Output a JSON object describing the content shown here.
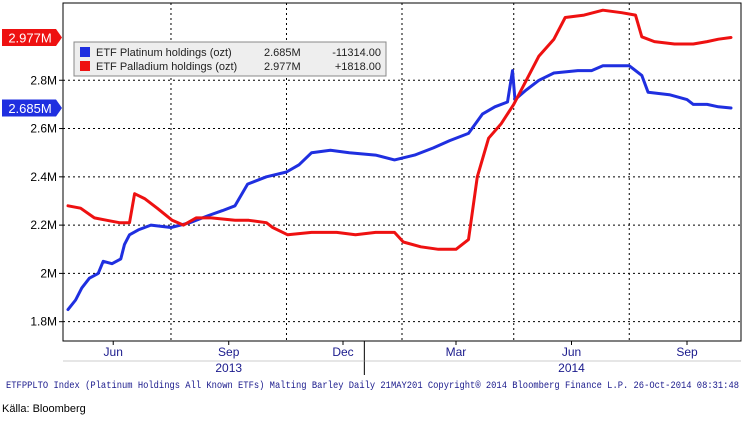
{
  "chart_data": {
    "type": "line",
    "y_unit_suffix": "M",
    "ylim": [
      1.72,
      3.12
    ],
    "y_ticks": [
      "1.8M",
      "2M",
      "2.2M",
      "2.4M",
      "2.6M",
      "2.8M"
    ],
    "x_ticks": [
      "Jun",
      "Sep",
      "Dec",
      "Mar",
      "Jun",
      "Sep"
    ],
    "year_labels": [
      "2013",
      "2014"
    ],
    "grid": true,
    "legend_position": "top-left",
    "footer": "ETFPPLTO Index (Platinum Holdings All Known ETFs) Malting Barley  Daily 21MAY201 Copyright® 2014 Bloomberg Finance L.P.  26-Oct-2014 08:31:48",
    "series": [
      {
        "name": "ETF Platinum holdings (ozt)",
        "color": "#1f2fe0",
        "legend_value": "2.685M",
        "legend_change": "-11314.00",
        "last_label": "2.685M",
        "values": [
          [
            "2013-05-10",
            1.85
          ],
          [
            "2013-05-16",
            1.89
          ],
          [
            "2013-05-21",
            1.94
          ],
          [
            "2013-05-27",
            1.98
          ],
          [
            "2013-06-03",
            2.0
          ],
          [
            "2013-06-07",
            2.05
          ],
          [
            "2013-06-14",
            2.04
          ],
          [
            "2013-06-21",
            2.06
          ],
          [
            "2013-06-24",
            2.12
          ],
          [
            "2013-06-28",
            2.16
          ],
          [
            "2013-07-05",
            2.18
          ],
          [
            "2013-07-15",
            2.2
          ],
          [
            "2013-07-31",
            2.19
          ],
          [
            "2013-08-15",
            2.21
          ],
          [
            "2013-08-30",
            2.24
          ],
          [
            "2013-09-10",
            2.26
          ],
          [
            "2013-09-20",
            2.28
          ],
          [
            "2013-09-30",
            2.37
          ],
          [
            "2013-10-15",
            2.4
          ],
          [
            "2013-10-31",
            2.42
          ],
          [
            "2013-11-10",
            2.45
          ],
          [
            "2013-11-20",
            2.5
          ],
          [
            "2013-12-05",
            2.51
          ],
          [
            "2013-12-20",
            2.5
          ],
          [
            "2014-01-10",
            2.49
          ],
          [
            "2014-01-25",
            2.47
          ],
          [
            "2014-02-10",
            2.49
          ],
          [
            "2014-02-25",
            2.52
          ],
          [
            "2014-03-10",
            2.55
          ],
          [
            "2014-03-25",
            2.58
          ],
          [
            "2014-04-05",
            2.66
          ],
          [
            "2014-04-15",
            2.69
          ],
          [
            "2014-04-25",
            2.71
          ],
          [
            "2014-04-29",
            2.84
          ],
          [
            "2014-05-01",
            2.72
          ],
          [
            "2014-05-10",
            2.76
          ],
          [
            "2014-05-20",
            2.8
          ],
          [
            "2014-06-01",
            2.83
          ],
          [
            "2014-06-20",
            2.84
          ],
          [
            "2014-07-01",
            2.84
          ],
          [
            "2014-07-10",
            2.86
          ],
          [
            "2014-07-31",
            2.86
          ],
          [
            "2014-08-10",
            2.82
          ],
          [
            "2014-08-15",
            2.75
          ],
          [
            "2014-09-01",
            2.74
          ],
          [
            "2014-09-15",
            2.72
          ],
          [
            "2014-09-20",
            2.7
          ],
          [
            "2014-10-01",
            2.7
          ],
          [
            "2014-10-10",
            2.69
          ],
          [
            "2014-10-20",
            2.685
          ]
        ]
      },
      {
        "name": "ETF Palladium holdings (ozt)",
        "color": "#ee1111",
        "legend_value": "2.977M",
        "legend_change": "+1818.00",
        "last_label": "2.977M",
        "values": [
          [
            "2013-05-10",
            2.28
          ],
          [
            "2013-05-20",
            2.27
          ],
          [
            "2013-05-31",
            2.23
          ],
          [
            "2013-06-10",
            2.22
          ],
          [
            "2013-06-20",
            2.21
          ],
          [
            "2013-06-28",
            2.21
          ],
          [
            "2013-07-02",
            2.33
          ],
          [
            "2013-07-10",
            2.31
          ],
          [
            "2013-07-20",
            2.27
          ],
          [
            "2013-08-01",
            2.22
          ],
          [
            "2013-08-10",
            2.2
          ],
          [
            "2013-08-20",
            2.23
          ],
          [
            "2013-09-01",
            2.23
          ],
          [
            "2013-09-20",
            2.22
          ],
          [
            "2013-10-01",
            2.22
          ],
          [
            "2013-10-15",
            2.21
          ],
          [
            "2013-10-20",
            2.19
          ],
          [
            "2013-11-01",
            2.16
          ],
          [
            "2013-11-20",
            2.17
          ],
          [
            "2013-12-10",
            2.17
          ],
          [
            "2013-12-25",
            2.16
          ],
          [
            "2014-01-10",
            2.17
          ],
          [
            "2014-01-25",
            2.17
          ],
          [
            "2014-02-01",
            2.13
          ],
          [
            "2014-02-15",
            2.11
          ],
          [
            "2014-03-01",
            2.1
          ],
          [
            "2014-03-15",
            2.1
          ],
          [
            "2014-03-25",
            2.14
          ],
          [
            "2014-04-01",
            2.4
          ],
          [
            "2014-04-10",
            2.56
          ],
          [
            "2014-04-20",
            2.62
          ],
          [
            "2014-04-30",
            2.7
          ],
          [
            "2014-05-10",
            2.8
          ],
          [
            "2014-05-20",
            2.9
          ],
          [
            "2014-06-01",
            2.97
          ],
          [
            "2014-06-10",
            3.06
          ],
          [
            "2014-06-25",
            3.07
          ],
          [
            "2014-07-10",
            3.09
          ],
          [
            "2014-07-25",
            3.08
          ],
          [
            "2014-08-05",
            3.07
          ],
          [
            "2014-08-10",
            2.98
          ],
          [
            "2014-08-20",
            2.96
          ],
          [
            "2014-09-05",
            2.95
          ],
          [
            "2014-09-20",
            2.95
          ],
          [
            "2014-10-01",
            2.96
          ],
          [
            "2014-10-10",
            2.97
          ],
          [
            "2014-10-20",
            2.977
          ]
        ]
      }
    ]
  },
  "source_note": "Källa: Bloomberg"
}
